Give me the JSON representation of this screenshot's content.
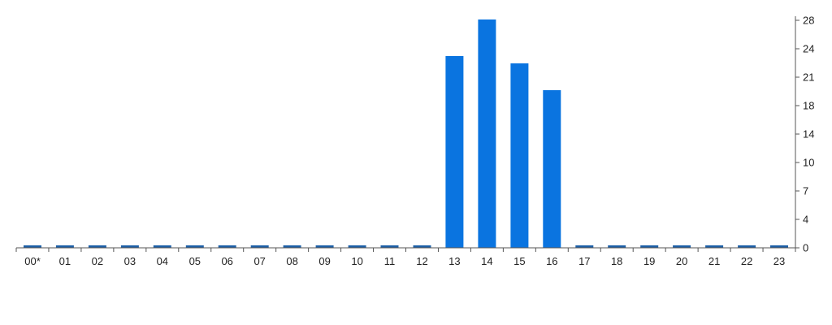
{
  "chart_data": {
    "type": "bar",
    "categories": [
      "00*",
      "01",
      "02",
      "03",
      "04",
      "05",
      "06",
      "07",
      "08",
      "09",
      "10",
      "11",
      "12",
      "13",
      "14",
      "15",
      "16",
      "17",
      "18",
      "19",
      "20",
      "21",
      "22",
      "23"
    ],
    "values": [
      0,
      0,
      0,
      0,
      0,
      0,
      0,
      0,
      0,
      0,
      0,
      0,
      0,
      23.6,
      28.1,
      22.7,
      19.4,
      0,
      0,
      0,
      0,
      0,
      0,
      0
    ],
    "y_ticks": [
      "0",
      "4",
      "7",
      "10",
      "14",
      "18",
      "21",
      "24",
      "28"
    ],
    "y_tick_values": [
      0,
      3.5,
      7,
      10.5,
      14,
      17.5,
      21,
      24.5,
      28
    ],
    "ylim": [
      0,
      28
    ],
    "y_axis_side": "right",
    "grid": false,
    "title": "",
    "xlabel": "",
    "ylabel": "",
    "colors": {
      "bar": "#0a74e0",
      "zero_bar": "#1d5fa6",
      "axis": "#555555",
      "text": "#222222"
    }
  }
}
